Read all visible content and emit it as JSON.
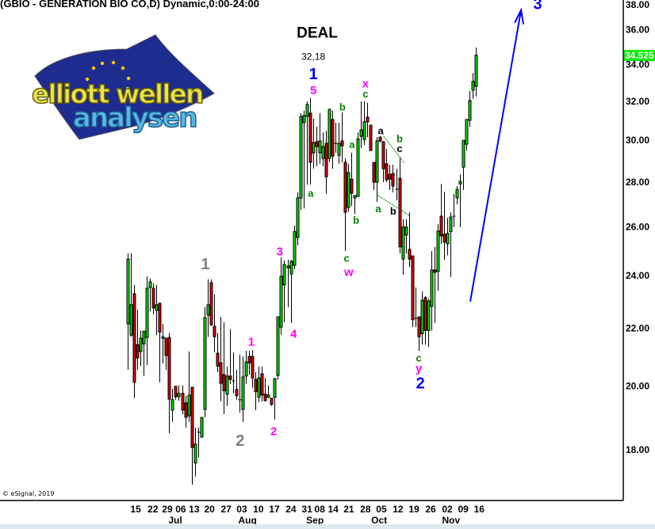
{
  "header": {
    "title": "(GBIO - GENERATION BIO CO,D) Dynamic,0:00-24:00"
  },
  "footer": {
    "copyright": "© eSignal, 2019"
  },
  "logo": {
    "line1": "elliott wellen",
    "line2": "analysen"
  },
  "colors": {
    "up": "#00dd00",
    "down": "#e00000",
    "wave_grey": "#808080",
    "wave_magenta": "#ff00ff",
    "wave_blue": "#0000ff",
    "wave_green": "#008000",
    "wave_black": "#000000",
    "last_price_bg": "#00ee00",
    "arrow": "#0000ff"
  },
  "chart_data": {
    "type": "candlestick",
    "title": "(GBIO - GENERATION BIO CO,D) Dynamic,0:00-24:00",
    "y_scale": "log",
    "ylim": [
      16.56,
      37.8
    ],
    "y_ticks": [
      "18.00",
      "20.00",
      "22.00",
      "24.00",
      "26.00",
      "28.00",
      "30.00",
      "32.00",
      "34.00",
      "36.00",
      "38.00"
    ],
    "last_price": "34.525",
    "grid": false,
    "x_ticks": [
      {
        "label": "15",
        "bar": 2.5
      },
      {
        "label": "22",
        "bar": 7.9
      },
      {
        "label": "29",
        "bar": 12.4
      },
      {
        "label": "06",
        "bar": 16.6
      },
      {
        "label": "13",
        "bar": 20.8
      },
      {
        "label": "20",
        "bar": 25.6
      },
      {
        "label": "27",
        "bar": 30.8
      },
      {
        "label": "03",
        "bar": 35.7
      },
      {
        "label": "10",
        "bar": 40.9
      },
      {
        "label": "17",
        "bar": 45.9
      },
      {
        "label": "24",
        "bar": 51.1
      },
      {
        "label": "31",
        "bar": 56.1
      },
      {
        "label": "08",
        "bar": 60.1
      },
      {
        "label": "14",
        "bar": 64.3
      },
      {
        "label": "21",
        "bar": 69.2
      },
      {
        "label": "28",
        "bar": 74.4
      },
      {
        "label": "05",
        "bar": 79.4
      },
      {
        "label": "12",
        "bar": 84.6
      },
      {
        "label": "19",
        "bar": 89.6
      },
      {
        "label": "26",
        "bar": 94.8
      },
      {
        "label": "02",
        "bar": 100
      },
      {
        "label": "09",
        "bar": 105
      },
      {
        "label": "16",
        "bar": 110
      }
    ],
    "month_labels": [
      {
        "label": "Jul",
        "bar": 14.9
      },
      {
        "label": "Aug",
        "bar": 37.5
      },
      {
        "label": "Sep",
        "bar": 58.6
      },
      {
        "label": "Oct",
        "bar": 78.7
      },
      {
        "label": "Nov",
        "bar": 101.2
      }
    ],
    "ohlc_fields": [
      "open",
      "high",
      "low",
      "close"
    ],
    "candles": [
      [
        22.16,
        24.89,
        20.54,
        24.66
      ],
      [
        21.75,
        24.89,
        21.69,
        22.87
      ],
      [
        23.29,
        23.63,
        19.6,
        20.12
      ],
      [
        21.41,
        22.69,
        20.54,
        20.95
      ],
      [
        21.17,
        21.92,
        20.67,
        21.64
      ],
      [
        21.44,
        21.92,
        20.33,
        21.89
      ],
      [
        21.67,
        23.97,
        20.7,
        23.5
      ],
      [
        23.53,
        23.88,
        22.63,
        23.75
      ],
      [
        23.5,
        23.69,
        22.52,
        22.75
      ],
      [
        22.66,
        23.63,
        21.75,
        22.87
      ],
      [
        22.93,
        22.93,
        20.12,
        21.86
      ],
      [
        21.64,
        22.16,
        20.76,
        21.69
      ],
      [
        21.64,
        21.64,
        20.54,
        21.03
      ],
      [
        21.67,
        21.83,
        18.5,
        19.57
      ],
      [
        19.22,
        19.91,
        18.85,
        19.55
      ],
      [
        19.99,
        19.99,
        19.55,
        19.65
      ],
      [
        19.65,
        20.02,
        19.52,
        19.76
      ],
      [
        19.76,
        20.02,
        19.09,
        19.22
      ],
      [
        19.45,
        19.68,
        18.67,
        18.99
      ],
      [
        19.04,
        21.17,
        18.85,
        19.7
      ],
      [
        19.96,
        19.96,
        16.99,
        18.07
      ],
      [
        17.61,
        18.67,
        17.22,
        18.17
      ],
      [
        18.53,
        18.67,
        17.77,
        18.53
      ],
      [
        18.38,
        18.99,
        18.38,
        18.99
      ],
      [
        19.24,
        22.78,
        18.99,
        22.39
      ],
      [
        22.48,
        23.85,
        21.69,
        22.87
      ],
      [
        23.72,
        23.85,
        22.07,
        22.13
      ],
      [
        22.07,
        23.26,
        21.14,
        21.69
      ],
      [
        21.11,
        21.83,
        20.46,
        20.67
      ],
      [
        20.78,
        22.42,
        19.5,
        20.09
      ],
      [
        20.38,
        22.22,
        19.09,
        19.84
      ],
      [
        19.73,
        20.65,
        19.35,
        20.33
      ],
      [
        20.33,
        21.97,
        20.07,
        20.22
      ],
      [
        20.17,
        21.14,
        19.76,
        20.17
      ],
      [
        19.89,
        20.54,
        19.55,
        19.68
      ],
      [
        19.55,
        21.06,
        19.14,
        19.55
      ],
      [
        19.24,
        21.0,
        18.85,
        20.3
      ],
      [
        20.33,
        21.19,
        20.07,
        20.81
      ],
      [
        21.0,
        21.19,
        20.38,
        20.78
      ],
      [
        21.0,
        21.22,
        19.94,
        20.27
      ],
      [
        20.22,
        20.46,
        19.22,
        19.81
      ],
      [
        19.63,
        20.65,
        19.47,
        20.27
      ],
      [
        20.41,
        20.65,
        19.5,
        19.7
      ],
      [
        19.73,
        20.27,
        19.5,
        19.52
      ],
      [
        19.63,
        20.02,
        19.6,
        19.7
      ],
      [
        19.6,
        19.6,
        19.35,
        19.4
      ],
      [
        19.63,
        20.25,
        18.92,
        20.25
      ],
      [
        20.35,
        22.42,
        20.2,
        22.42
      ],
      [
        22.04,
        24.73,
        21.77,
        23.97
      ],
      [
        23.63,
        24.6,
        22.22,
        24.44
      ],
      [
        24.31,
        24.63,
        22.78,
        24.38
      ],
      [
        24.06,
        24.63,
        22.19,
        24.57
      ],
      [
        24.41,
        26.06,
        24.25,
        25.8
      ],
      [
        25.56,
        27.53,
        25.22,
        27.28
      ],
      [
        27.28,
        31.38,
        26.74,
        31.21
      ],
      [
        30.89,
        31.5,
        26.81,
        31.25
      ],
      [
        31.21,
        32.0,
        27.89,
        31.83
      ],
      [
        31.38,
        32.17,
        27.89,
        28.93
      ],
      [
        29.39,
        31.09,
        28.63,
        29.89
      ],
      [
        29.93,
        30.68,
        28.74,
        29.69
      ],
      [
        29.39,
        31.38,
        28.86,
        29.97
      ],
      [
        29.12,
        30.4,
        28.74,
        29.69
      ],
      [
        29.85,
        30.48,
        27.46,
        28.25
      ],
      [
        29.12,
        31.58,
        28.93,
        31.58
      ],
      [
        31.05,
        31.5,
        28.63,
        29.23
      ],
      [
        29.85,
        30.89,
        29.39,
        29.85
      ],
      [
        29.27,
        30.89,
        28.86,
        29.85
      ],
      [
        29.97,
        31.42,
        28.93,
        29.73
      ],
      [
        28.93,
        29.12,
        24.99,
        26.64
      ],
      [
        26.85,
        28.86,
        26.67,
        28.44
      ],
      [
        28.14,
        29.39,
        26.92,
        27.49
      ],
      [
        27.28,
        27.39,
        26.57,
        27.39
      ],
      [
        27.35,
        30.4,
        27.35,
        30.08
      ],
      [
        30.2,
        32.0,
        29.62,
        30.52
      ],
      [
        30.04,
        32.0,
        29.77,
        30.93
      ],
      [
        31.17,
        31.92,
        30.16,
        30.93
      ],
      [
        30.76,
        30.76,
        29.5,
        29.5
      ],
      [
        28.93,
        28.93,
        27.64,
        28.0
      ],
      [
        28.0,
        30.16,
        27.1,
        29.97
      ],
      [
        30.16,
        30.2,
        29.89,
        29.97
      ],
      [
        29.93,
        29.97,
        28.0,
        28.63
      ],
      [
        28.86,
        29.58,
        28.0,
        28.11
      ],
      [
        28.36,
        28.82,
        27.64,
        28.14
      ],
      [
        28.4,
        28.82,
        27.53,
        27.82
      ],
      [
        27.67,
        28.63,
        27.17,
        27.67
      ],
      [
        28.18,
        29.2,
        24.89,
        25.16
      ],
      [
        24.66,
        26.33,
        24.03,
        26.0
      ],
      [
        25.66,
        26.33,
        24.89,
        26.0
      ],
      [
        25.06,
        26.64,
        24.34,
        24.66
      ],
      [
        24.79,
        24.79,
        22.04,
        22.31
      ],
      [
        22.36,
        23.53,
        22.04,
        22.36
      ],
      [
        22.42,
        22.42,
        21.19,
        21.69
      ],
      [
        21.8,
        23.38,
        21.41,
        23.04
      ],
      [
        23.14,
        23.2,
        21.41,
        21.92
      ],
      [
        21.92,
        23.11,
        21.33,
        23.01
      ],
      [
        22.81,
        24.99,
        21.92,
        24.22
      ],
      [
        24.22,
        25.16,
        22.19,
        24.13
      ],
      [
        24.16,
        26.13,
        23.41,
        25.83
      ],
      [
        26.47,
        27.92,
        25.29,
        25.62
      ],
      [
        25.69,
        27.56,
        24.63,
        25.36
      ],
      [
        25.29,
        26.4,
        24.82,
        25.73
      ],
      [
        25.8,
        26.64,
        23.94,
        26.43
      ],
      [
        26.47,
        27.46,
        26.0,
        26.47
      ],
      [
        27.28,
        27.82,
        26.99,
        27.67
      ],
      [
        27.92,
        28.36,
        26.0,
        28.04
      ],
      [
        28.7,
        30.0,
        27.64,
        30.0
      ],
      [
        29.81,
        31.05,
        29.5,
        31.05
      ],
      [
        31.01,
        32.55,
        30.68,
        32.04
      ],
      [
        32.59,
        33.53,
        32.13,
        33.06
      ],
      [
        32.8,
        34.97,
        32.25,
        34.525
      ]
    ],
    "annotations": [
      {
        "text": "DEAL",
        "bar": 59.3,
        "price": 35.85,
        "color": "#000000",
        "style": "headline"
      },
      {
        "text": "32,18",
        "bar": 58.1,
        "price": 34.45,
        "color": "#000000",
        "style": "note"
      },
      {
        "text": "1",
        "bar": 24.3,
        "price": 24.47,
        "color": "#808080",
        "style": "large"
      },
      {
        "text": "2",
        "bar": 35.2,
        "price": 18.28,
        "color": "#808080",
        "style": "large"
      },
      {
        "text": "1",
        "bar": 38.7,
        "price": 21.52,
        "color": "#ff00ff",
        "style": "medium"
      },
      {
        "text": "2",
        "bar": 45.7,
        "price": 18.57,
        "color": "#ff00ff",
        "style": "medium"
      },
      {
        "text": "3",
        "bar": 47.6,
        "price": 24.99,
        "color": "#ff00ff",
        "style": "medium"
      },
      {
        "text": "4",
        "bar": 51.9,
        "price": 21.8,
        "color": "#ff00ff",
        "style": "medium"
      },
      {
        "text": "5",
        "bar": 58.1,
        "price": 32.6,
        "color": "#ff00ff",
        "style": "medium"
      },
      {
        "text": "1",
        "bar": 58.1,
        "price": 33.5,
        "color": "#0000ff",
        "style": "large"
      },
      {
        "text": "a",
        "bar": 57.3,
        "price": 27.5,
        "color": "#008000",
        "style": "small"
      },
      {
        "text": "b",
        "bar": 67.2,
        "price": 31.7,
        "color": "#008000",
        "style": "small"
      },
      {
        "text": "a",
        "bar": 70.2,
        "price": 29.8,
        "color": "#008000",
        "style": "small"
      },
      {
        "text": "b",
        "bar": 71.5,
        "price": 26.3,
        "color": "#008000",
        "style": "small"
      },
      {
        "text": "c",
        "bar": 68.5,
        "price": 24.7,
        "color": "#008000",
        "style": "small"
      },
      {
        "text": "w",
        "bar": 69.2,
        "price": 24.15,
        "color": "#ff00ff",
        "style": "medium"
      },
      {
        "text": "x",
        "bar": 74.4,
        "price": 32.97,
        "color": "#ff00ff",
        "style": "medium"
      },
      {
        "text": "c",
        "bar": 74.4,
        "price": 32.4,
        "color": "#008000",
        "style": "small"
      },
      {
        "text": "a",
        "bar": 79.2,
        "price": 30.48,
        "color": "#000000",
        "style": "small"
      },
      {
        "text": "b",
        "bar": 85.1,
        "price": 30.08,
        "color": "#008000",
        "style": "small"
      },
      {
        "text": "c",
        "bar": 85.1,
        "price": 29.6,
        "color": "#000000",
        "style": "small"
      },
      {
        "text": "a",
        "bar": 78.4,
        "price": 26.8,
        "color": "#008000",
        "style": "small"
      },
      {
        "text": "b",
        "bar": 83.1,
        "price": 26.7,
        "color": "#000000",
        "style": "small"
      },
      {
        "text": "c",
        "bar": 91.1,
        "price": 20.95,
        "color": "#008000",
        "style": "small"
      },
      {
        "text": "y",
        "bar": 91.1,
        "price": 20.6,
        "color": "#ff00ff",
        "style": "medium"
      },
      {
        "text": "2",
        "bar": 91.6,
        "price": 20.1,
        "color": "#0000ff",
        "style": "large"
      },
      {
        "text": "3",
        "bar": 128.3,
        "price": 37.6,
        "color": "#0000ff",
        "style": "large"
      }
    ],
    "trend_lines": [
      {
        "from": {
          "bar": 80.1,
          "price": 30.2
        },
        "to": {
          "bar": 86.6,
          "price": 28.9
        },
        "color": "#008000",
        "dash": "dotted"
      },
      {
        "from": {
          "bar": 78.2,
          "price": 27.4
        },
        "to": {
          "bar": 88.1,
          "price": 26.5
        },
        "color": "#008000",
        "dash": "dotted"
      }
    ],
    "arrow": {
      "from": {
        "bar": 107.2,
        "price": 22.99
      },
      "to": {
        "bar": 123.1,
        "price": 37.2
      },
      "color": "#0000ff"
    }
  }
}
